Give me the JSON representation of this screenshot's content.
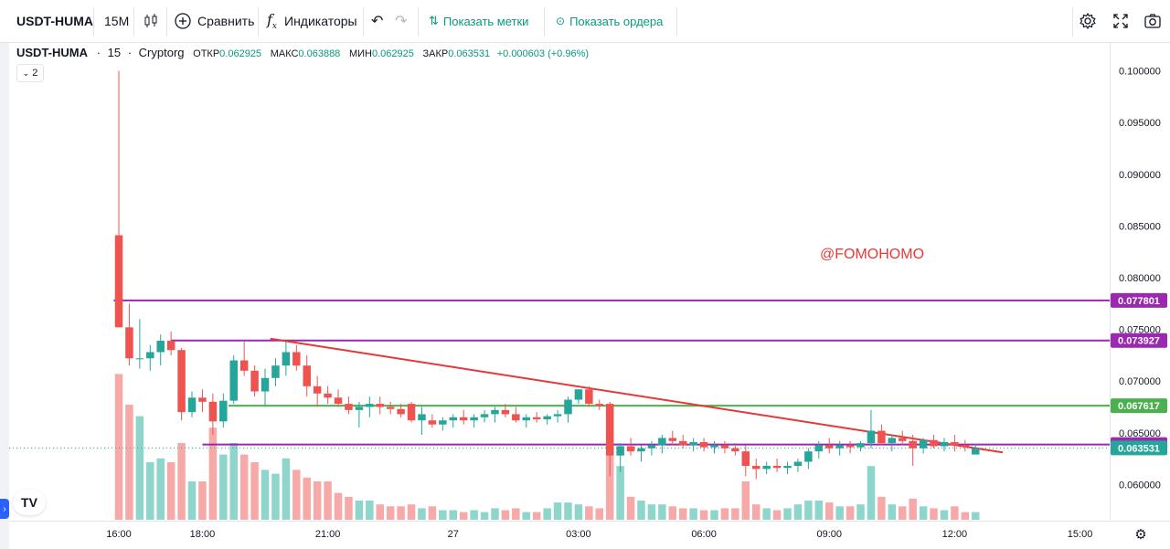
{
  "toolbar": {
    "symbol": "USDT-HUMA",
    "interval": "15М",
    "compare_label": "Сравнить",
    "indicators_label": "Индикаторы",
    "show_marks_label": "Показать метки",
    "show_orders_label": "Показать ордера",
    "icons": [
      "candles-icon",
      "plus-circle-icon",
      "fx-icon",
      "undo-icon",
      "redo-icon",
      "marks-icon",
      "orders-icon",
      "gear-icon",
      "fullscreen-icon",
      "camera-icon"
    ]
  },
  "legend": {
    "symbol": "USDT-HUMA",
    "interval": "15",
    "source": "Cryptorg",
    "open_label": "ОТКР",
    "open_value": "0.062925",
    "high_label": "МАКС",
    "high_value": "0.063888",
    "low_label": "МИН",
    "low_value": "0.062925",
    "close_label": "ЗАКР",
    "close_value": "0.063531",
    "change": "+0.000603 (+0.96%)",
    "collapse_count": "2"
  },
  "watermark": "@FOMOHOMO",
  "logo_text": "TV",
  "chart_data": {
    "type": "candlestick",
    "colors": {
      "up": "#26a69a",
      "down": "#ef5350",
      "up_volume": "#8ed5cb",
      "down_volume": "#f7a9a7",
      "purple": "#9c27b0",
      "green_line": "#4caf50",
      "trend_line": "#e53935"
    },
    "y_ticks": [
      "0.060000",
      "0.065000",
      "0.070000",
      "0.075000",
      "0.080000",
      "0.085000",
      "0.090000",
      "0.095000",
      "0.100000"
    ],
    "ylim": [
      0.0565,
      0.1027
    ],
    "x_ticks": [
      {
        "label": "16:00",
        "bar": 0
      },
      {
        "label": "18:00",
        "bar": 8
      },
      {
        "label": "21:00",
        "bar": 20
      },
      {
        "label": "27",
        "bar": 32
      },
      {
        "label": "03:00",
        "bar": 44
      },
      {
        "label": "06:00",
        "bar": 56
      },
      {
        "label": "09:00",
        "bar": 68
      },
      {
        "label": "12:00",
        "bar": 80
      },
      {
        "label": "15:00",
        "bar": 92
      }
    ],
    "horizontal_lines": [
      {
        "price": 0.077801,
        "label": "0.077801",
        "color": "#9c27b0",
        "start_bar": -0.5
      },
      {
        "price": 0.073927,
        "label": "0.073927",
        "color": "#9c27b0",
        "start_bar": 5
      },
      {
        "price": 0.067617,
        "label": "0.067617",
        "color": "#4caf50",
        "start_bar": 10.5
      },
      {
        "price": 0.06387,
        "label": "0.063870",
        "color": "#9c27b0",
        "start_bar": 8
      },
      {
        "price": 0.063531,
        "label": "0.063531",
        "color": "#26a69a",
        "start_bar": null
      }
    ],
    "trend_line": {
      "from": [
        14.5,
        0.0741
      ],
      "to": [
        84.6,
        0.0631
      ]
    },
    "candles": [
      [
        0.0841,
        0.1,
        0.0752,
        0.0752,
        0.38
      ],
      [
        0.0752,
        0.0775,
        0.0715,
        0.0722,
        0.3
      ],
      [
        0.0722,
        0.076,
        0.0712,
        0.0722,
        0.27
      ],
      [
        0.0722,
        0.0735,
        0.071,
        0.0728,
        0.15
      ],
      [
        0.0728,
        0.0745,
        0.0715,
        0.0739,
        0.16
      ],
      [
        0.0739,
        0.0748,
        0.0725,
        0.073,
        0.15
      ],
      [
        0.073,
        0.0732,
        0.0662,
        0.067,
        0.2
      ],
      [
        0.067,
        0.069,
        0.0665,
        0.0684,
        0.1
      ],
      [
        0.0684,
        0.0692,
        0.067,
        0.068,
        0.1
      ],
      [
        0.068,
        0.0688,
        0.0648,
        0.0661,
        0.24
      ],
      [
        0.0661,
        0.0688,
        0.0655,
        0.0681,
        0.17
      ],
      [
        0.0681,
        0.0725,
        0.0678,
        0.072,
        0.2
      ],
      [
        0.072,
        0.0738,
        0.0705,
        0.071,
        0.17
      ],
      [
        0.071,
        0.0715,
        0.0685,
        0.069,
        0.15
      ],
      [
        0.069,
        0.0712,
        0.0675,
        0.0703,
        0.13
      ],
      [
        0.0703,
        0.0722,
        0.0695,
        0.0715,
        0.12
      ],
      [
        0.0715,
        0.0738,
        0.0705,
        0.0728,
        0.16
      ],
      [
        0.0728,
        0.0735,
        0.071,
        0.0715,
        0.13
      ],
      [
        0.0715,
        0.0725,
        0.0685,
        0.0695,
        0.11
      ],
      [
        0.0695,
        0.0705,
        0.0675,
        0.0688,
        0.1
      ],
      [
        0.0688,
        0.0695,
        0.0678,
        0.0684,
        0.1
      ],
      [
        0.0684,
        0.0692,
        0.0675,
        0.0678,
        0.07
      ],
      [
        0.0678,
        0.0685,
        0.0668,
        0.0672,
        0.06
      ],
      [
        0.0672,
        0.068,
        0.0655,
        0.0675,
        0.05
      ],
      [
        0.0675,
        0.0685,
        0.0665,
        0.0678,
        0.05
      ],
      [
        0.0678,
        0.0685,
        0.0668,
        0.0675,
        0.04
      ],
      [
        0.0675,
        0.068,
        0.0668,
        0.0673,
        0.035
      ],
      [
        0.0673,
        0.0678,
        0.0665,
        0.0668,
        0.035
      ],
      [
        0.0678,
        0.068,
        0.066,
        0.0662,
        0.04
      ],
      [
        0.0662,
        0.0675,
        0.0648,
        0.0668,
        0.03
      ],
      [
        0.0662,
        0.0668,
        0.0655,
        0.0658,
        0.035
      ],
      [
        0.0658,
        0.0665,
        0.0652,
        0.0662,
        0.025
      ],
      [
        0.0662,
        0.0668,
        0.0655,
        0.0665,
        0.025
      ],
      [
        0.0665,
        0.0672,
        0.0658,
        0.0662,
        0.02
      ],
      [
        0.0662,
        0.0668,
        0.0655,
        0.0665,
        0.025
      ],
      [
        0.0665,
        0.0672,
        0.066,
        0.0668,
        0.02
      ],
      [
        0.0668,
        0.0675,
        0.066,
        0.0672,
        0.03
      ],
      [
        0.0672,
        0.0678,
        0.0665,
        0.0668,
        0.025
      ],
      [
        0.0668,
        0.0675,
        0.066,
        0.0662,
        0.03
      ],
      [
        0.0662,
        0.0668,
        0.0655,
        0.0665,
        0.02
      ],
      [
        0.0665,
        0.067,
        0.066,
        0.0663,
        0.02
      ],
      [
        0.0663,
        0.0668,
        0.0658,
        0.0666,
        0.03
      ],
      [
        0.0666,
        0.0672,
        0.066,
        0.0668,
        0.045
      ],
      [
        0.0668,
        0.0685,
        0.066,
        0.0682,
        0.045
      ],
      [
        0.0682,
        0.0692,
        0.0678,
        0.0692,
        0.04
      ],
      [
        0.0692,
        0.0695,
        0.0675,
        0.0678,
        0.035
      ],
      [
        0.0678,
        0.0682,
        0.0672,
        0.0676,
        0.03
      ],
      [
        0.0678,
        0.068,
        0.0608,
        0.0628,
        0.22
      ],
      [
        0.0628,
        0.064,
        0.0612,
        0.0637,
        0.14
      ],
      [
        0.0637,
        0.0645,
        0.0628,
        0.0632,
        0.06
      ],
      [
        0.0632,
        0.0638,
        0.0622,
        0.0635,
        0.05
      ],
      [
        0.0635,
        0.0642,
        0.0628,
        0.0638,
        0.04
      ],
      [
        0.0638,
        0.0648,
        0.063,
        0.0645,
        0.04
      ],
      [
        0.0645,
        0.0652,
        0.0638,
        0.0642,
        0.035
      ],
      [
        0.0642,
        0.0648,
        0.0635,
        0.0638,
        0.03
      ],
      [
        0.0638,
        0.0645,
        0.0632,
        0.0641,
        0.03
      ],
      [
        0.0641,
        0.0645,
        0.0632,
        0.0636,
        0.025
      ],
      [
        0.0636,
        0.0642,
        0.063,
        0.0638,
        0.025
      ],
      [
        0.0638,
        0.0642,
        0.063,
        0.0635,
        0.03
      ],
      [
        0.0635,
        0.064,
        0.0628,
        0.0632,
        0.03
      ],
      [
        0.0632,
        0.0638,
        0.0608,
        0.0618,
        0.1
      ],
      [
        0.0618,
        0.0625,
        0.0605,
        0.0615,
        0.04
      ],
      [
        0.0615,
        0.0622,
        0.061,
        0.0618,
        0.03
      ],
      [
        0.0618,
        0.0625,
        0.0612,
        0.0616,
        0.025
      ],
      [
        0.0616,
        0.0622,
        0.061,
        0.0618,
        0.03
      ],
      [
        0.0618,
        0.0625,
        0.0612,
        0.0622,
        0.04
      ],
      [
        0.0622,
        0.0635,
        0.0615,
        0.0632,
        0.05
      ],
      [
        0.0632,
        0.0642,
        0.0625,
        0.0638,
        0.05
      ],
      [
        0.0638,
        0.0645,
        0.063,
        0.0635,
        0.045
      ],
      [
        0.0635,
        0.0642,
        0.0628,
        0.0638,
        0.035
      ],
      [
        0.0638,
        0.0642,
        0.063,
        0.0636,
        0.035
      ],
      [
        0.0636,
        0.0642,
        0.0632,
        0.064,
        0.04
      ],
      [
        0.064,
        0.0672,
        0.0635,
        0.0652,
        0.14
      ],
      [
        0.0652,
        0.0658,
        0.0638,
        0.064,
        0.06
      ],
      [
        0.064,
        0.0648,
        0.0632,
        0.0645,
        0.04
      ],
      [
        0.0645,
        0.0652,
        0.0638,
        0.0642,
        0.035
      ],
      [
        0.0642,
        0.0648,
        0.0618,
        0.0635,
        0.055
      ],
      [
        0.0635,
        0.0645,
        0.063,
        0.0643,
        0.035
      ],
      [
        0.0643,
        0.0648,
        0.0635,
        0.0637,
        0.03
      ],
      [
        0.0637,
        0.0645,
        0.0632,
        0.0641,
        0.025
      ],
      [
        0.0641,
        0.0648,
        0.0632,
        0.0638,
        0.035
      ],
      [
        0.0638,
        0.0643,
        0.0632,
        0.0636,
        0.02
      ],
      [
        0.0629,
        0.0639,
        0.0629,
        0.0635,
        0.02
      ]
    ],
    "price_labels": {
      "ymin_display": 0.0565
    }
  }
}
